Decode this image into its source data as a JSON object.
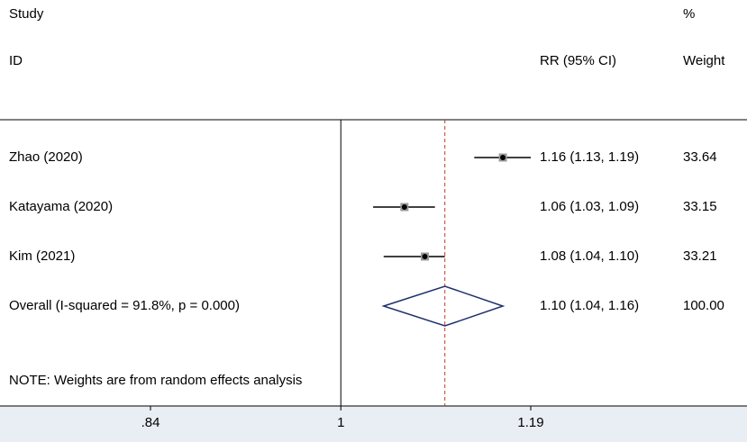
{
  "header": {
    "study_top": "Study",
    "study_bottom": "ID",
    "rr_label": "RR (95% CI)",
    "weight_top": "%",
    "weight_bottom": "Weight"
  },
  "note": "NOTE: Weights are from random effects analysis",
  "chart_data": {
    "type": "forest",
    "scale": "log",
    "null_value": 1,
    "xlim": [
      0.84,
      1.19
    ],
    "ticks": [
      {
        "value": 0.84,
        "label": ".84"
      },
      {
        "value": 1,
        "label": "1"
      },
      {
        "value": 1.19,
        "label": "1.19"
      }
    ],
    "studies": [
      {
        "name": "Zhao (2020)",
        "rr": 1.16,
        "lo": 1.13,
        "hi": 1.19,
        "ci_text": "1.16 (1.13, 1.19)",
        "weight": "33.64"
      },
      {
        "name": "Katayama (2020)",
        "rr": 1.06,
        "lo": 1.03,
        "hi": 1.09,
        "ci_text": "1.06 (1.03, 1.09)",
        "weight": "33.15"
      },
      {
        "name": "Kim (2021)",
        "rr": 1.08,
        "lo": 1.04,
        "hi": 1.1,
        "ci_text": "1.08 (1.04, 1.10)",
        "weight": "33.21"
      }
    ],
    "overall": {
      "name": "Overall  (I-squared = 91.8%, p = 0.000)",
      "rr": 1.1,
      "lo": 1.04,
      "hi": 1.16,
      "ci_text": "1.10 (1.04, 1.16)",
      "weight": "100.00"
    },
    "colors": {
      "diamond": "#1f2f6b",
      "reference_line": "#c0392b",
      "axis_band": "#e8eef3"
    }
  }
}
